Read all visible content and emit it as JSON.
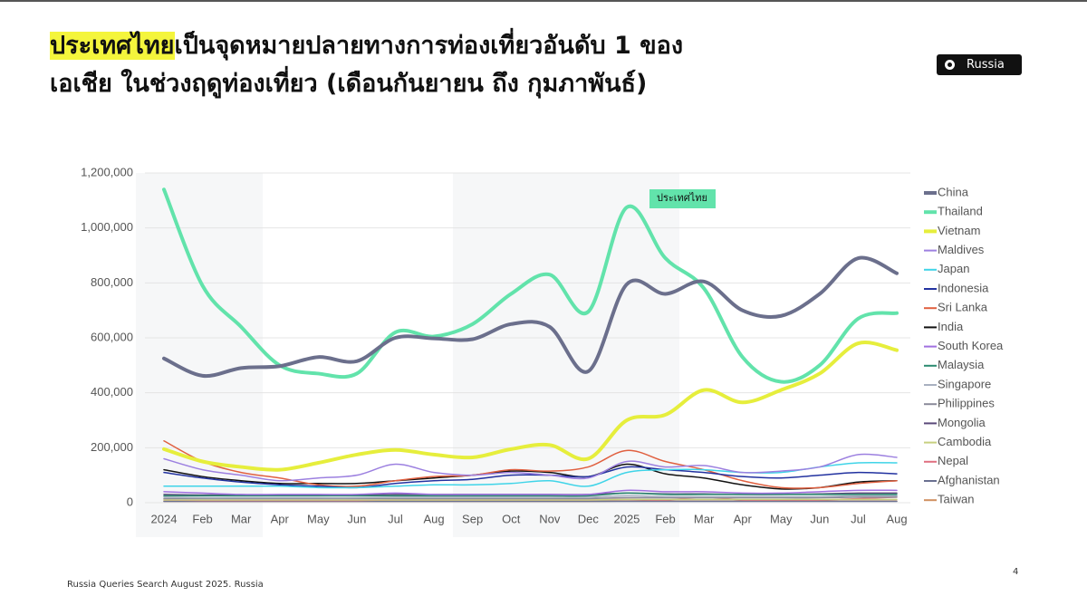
{
  "slide": {
    "title_highlight": "ประเทศไทย",
    "title_line1_rest": "เป็นจุดหมายปลายทางการท่องเที่ยวอันดับ 1 ของ",
    "title_line2": "เอเชีย ในช่วงฤดูท่องเที่ยว (เดือนกันยายน ถึง กุมภาพันธ์)",
    "button": "Russia",
    "footer": "Russia Queries Search August 2025. Russia",
    "page_number": "4"
  },
  "chart_data": {
    "type": "line",
    "annotation": "ประเทศไทย",
    "categories": [
      "2024",
      "Feb",
      "Mar",
      "Apr",
      "May",
      "Jun",
      "Jul",
      "Aug",
      "Sep",
      "Oct",
      "Nov",
      "Dec",
      "2025",
      "Feb",
      "Mar",
      "Apr",
      "May",
      "Jun",
      "Jul",
      "Aug"
    ],
    "ylim": [
      0,
      1200000
    ],
    "yticks": [
      0,
      {
        "value": 200000,
        "label": "200,000"
      },
      {
        "value": 400000,
        "label": "400,000"
      },
      {
        "value": 600000,
        "label": "600,000"
      },
      {
        "value": 800000,
        "label": "800,000"
      },
      {
        "value": 1000000,
        "label": "1,000,000"
      },
      {
        "value": 1200000,
        "label": "1,200,000"
      }
    ],
    "grid": true,
    "series": [
      {
        "name": "China",
        "color": "#6b6f8c",
        "width": 4,
        "values": [
          525000,
          462000,
          490000,
          497000,
          530000,
          515000,
          600000,
          598000,
          595000,
          650000,
          640000,
          478000,
          795000,
          760000,
          805000,
          700000,
          680000,
          760000,
          890000,
          835000
        ]
      },
      {
        "name": "Thailand",
        "color": "#62e3ab",
        "width": 4,
        "values": [
          1140000,
          790000,
          640000,
          500000,
          470000,
          470000,
          620000,
          605000,
          650000,
          760000,
          830000,
          695000,
          1075000,
          890000,
          780000,
          530000,
          440000,
          500000,
          670000,
          690000
        ]
      },
      {
        "name": "Vietnam",
        "color": "#e6ee3c",
        "width": 4,
        "values": [
          195000,
          150000,
          130000,
          120000,
          145000,
          175000,
          192000,
          175000,
          165000,
          195000,
          210000,
          160000,
          300000,
          320000,
          410000,
          365000,
          410000,
          470000,
          580000,
          555000
        ]
      },
      {
        "name": "Maldives",
        "color": "#9c80e0",
        "width": 1.5,
        "values": [
          160000,
          120000,
          100000,
          80000,
          90000,
          100000,
          140000,
          110000,
          100000,
          110000,
          100000,
          90000,
          150000,
          130000,
          135000,
          110000,
          115000,
          130000,
          175000,
          165000
        ]
      },
      {
        "name": "Japan",
        "color": "#3fd4e8",
        "width": 1.5,
        "values": [
          60000,
          60000,
          60000,
          60000,
          55000,
          55000,
          60000,
          65000,
          65000,
          70000,
          80000,
          60000,
          110000,
          120000,
          120000,
          110000,
          110000,
          130000,
          145000,
          145000
        ]
      },
      {
        "name": "Indonesia",
        "color": "#2232a0",
        "width": 1.5,
        "values": [
          110000,
          90000,
          75000,
          65000,
          60000,
          55000,
          70000,
          80000,
          85000,
          100000,
          100000,
          95000,
          130000,
          120000,
          110000,
          95000,
          90000,
          100000,
          110000,
          105000
        ]
      },
      {
        "name": "Sri Lanka",
        "color": "#e06040",
        "width": 1.5,
        "values": [
          225000,
          150000,
          110000,
          90000,
          65000,
          60000,
          80000,
          95000,
          100000,
          120000,
          115000,
          130000,
          190000,
          150000,
          120000,
          80000,
          55000,
          55000,
          70000,
          80000
        ]
      },
      {
        "name": "India",
        "color": "#111111",
        "width": 1.5,
        "values": [
          120000,
          95000,
          80000,
          70000,
          70000,
          70000,
          80000,
          90000,
          100000,
          115000,
          110000,
          95000,
          140000,
          105000,
          90000,
          65000,
          50000,
          55000,
          75000,
          80000
        ]
      },
      {
        "name": "South Korea",
        "color": "#a070e0",
        "width": 1.5,
        "values": [
          40000,
          35000,
          30000,
          30000,
          30000,
          30000,
          35000,
          30000,
          30000,
          30000,
          30000,
          30000,
          45000,
          40000,
          40000,
          35000,
          35000,
          40000,
          45000,
          45000
        ]
      },
      {
        "name": "Malaysia",
        "color": "#2a8a70",
        "width": 1.5,
        "values": [
          25000,
          25000,
          25000,
          25000,
          25000,
          25000,
          25000,
          25000,
          25000,
          25000,
          25000,
          25000,
          35000,
          30000,
          30000,
          30000,
          30000,
          30000,
          30000,
          30000
        ]
      },
      {
        "name": "Singapore",
        "color": "#a8b0c0",
        "width": 1.5,
        "values": [
          20000,
          18000,
          18000,
          18000,
          18000,
          18000,
          20000,
          20000,
          20000,
          20000,
          20000,
          20000,
          25000,
          22000,
          22000,
          22000,
          22000,
          22000,
          25000,
          25000
        ]
      },
      {
        "name": "Philippines",
        "color": "#8a8a9a",
        "width": 1.5,
        "values": [
          15000,
          15000,
          15000,
          15000,
          15000,
          15000,
          15000,
          15000,
          15000,
          15000,
          15000,
          15000,
          18000,
          18000,
          18000,
          18000,
          18000,
          18000,
          20000,
          20000
        ]
      },
      {
        "name": "Mongolia",
        "color": "#5a4a7a",
        "width": 1.5,
        "values": [
          30000,
          28000,
          28000,
          28000,
          28000,
          28000,
          30000,
          30000,
          30000,
          30000,
          30000,
          30000,
          35000,
          32000,
          32000,
          30000,
          30000,
          32000,
          35000,
          35000
        ]
      },
      {
        "name": "Cambodia",
        "color": "#c8d080",
        "width": 1.5,
        "values": [
          10000,
          10000,
          10000,
          10000,
          10000,
          10000,
          10000,
          10000,
          10000,
          10000,
          10000,
          10000,
          12000,
          12000,
          12000,
          12000,
          12000,
          12000,
          12000,
          12000
        ]
      },
      {
        "name": "Nepal",
        "color": "#e07080",
        "width": 1.5,
        "values": [
          10000,
          8000,
          8000,
          8000,
          8000,
          8000,
          10000,
          10000,
          10000,
          10000,
          10000,
          10000,
          12000,
          10000,
          20000,
          10000,
          10000,
          10000,
          15000,
          20000
        ]
      },
      {
        "name": "Afghanistan",
        "color": "#6a7090",
        "width": 1.5,
        "values": [
          5000,
          5000,
          5000,
          5000,
          5000,
          5000,
          5000,
          5000,
          5000,
          5000,
          5000,
          5000,
          5000,
          5000,
          5000,
          5000,
          5000,
          5000,
          5000,
          5000
        ]
      },
      {
        "name": "Taiwan",
        "color": "#d09060",
        "width": 1.5,
        "values": [
          5000,
          5000,
          5000,
          5000,
          5000,
          5000,
          5000,
          5000,
          5000,
          5000,
          5000,
          5000,
          6000,
          6000,
          6000,
          6000,
          6000,
          6000,
          6000,
          6000
        ]
      }
    ]
  }
}
